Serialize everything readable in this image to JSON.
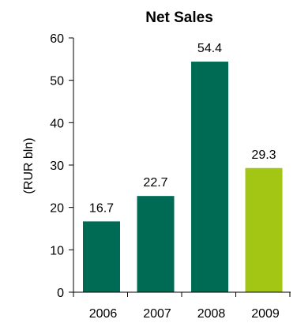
{
  "chart_data": {
    "type": "bar",
    "title": "Net Sales",
    "ylabel": "(RUR bln)",
    "xlabel": "",
    "categories": [
      "2006",
      "2007",
      "2008",
      "2009"
    ],
    "values": [
      16.7,
      22.7,
      54.4,
      29.3
    ],
    "value_labels": [
      "16.7",
      "22.7",
      "54.4",
      "29.3"
    ],
    "bar_colors": [
      "#006b54",
      "#006b54",
      "#006b54",
      "#a3c614"
    ],
    "ylim": [
      0,
      60
    ],
    "yticks": [
      "0",
      "10",
      "20",
      "30",
      "40",
      "50",
      "60"
    ],
    "grid": false,
    "legend": "none"
  }
}
